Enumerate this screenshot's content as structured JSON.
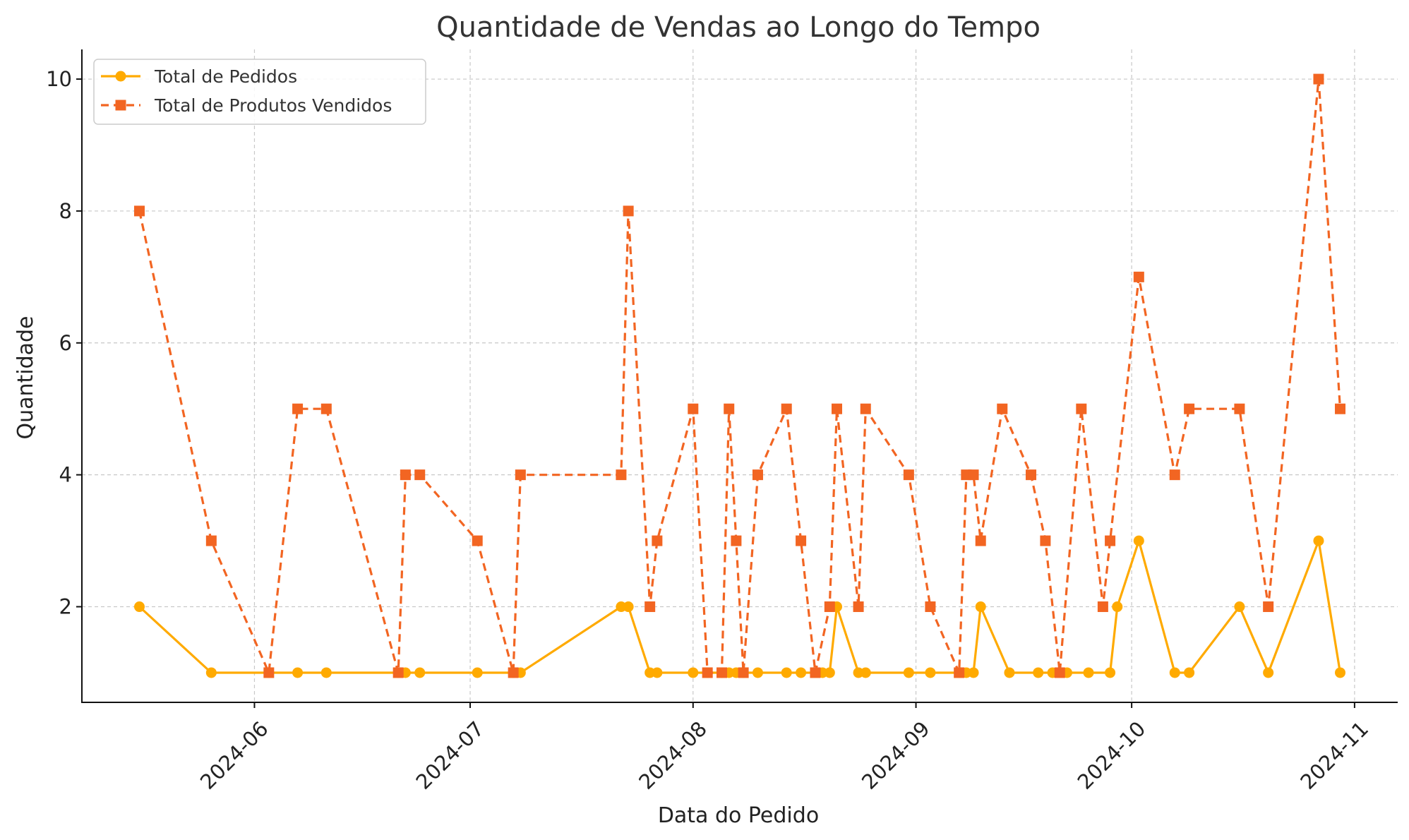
{
  "chart_data": {
    "type": "line",
    "title": "Quantidade de Vendas ao Longo do Tempo",
    "xlabel": "Data do Pedido",
    "ylabel": "Quantidade",
    "xlim": [
      "2024-05-08",
      "2024-11-07"
    ],
    "ylim": [
      0.55,
      10.45
    ],
    "x_ticks": [
      {
        "date": "2024-06-01",
        "label": "2024-06"
      },
      {
        "date": "2024-07-01",
        "label": "2024-07"
      },
      {
        "date": "2024-08-01",
        "label": "2024-08"
      },
      {
        "date": "2024-09-01",
        "label": "2024-09"
      },
      {
        "date": "2024-10-01",
        "label": "2024-10"
      },
      {
        "date": "2024-11-01",
        "label": "2024-11"
      }
    ],
    "y_ticks": [
      2,
      4,
      6,
      8,
      10
    ],
    "grid": true,
    "legend_position": "upper-left",
    "series": [
      {
        "name": "Total de Pedidos",
        "color": "#FFAA00",
        "line_style": "solid",
        "marker": "circle",
        "points": [
          [
            "2024-05-16",
            2
          ],
          [
            "2024-05-26",
            1
          ],
          [
            "2024-06-03",
            1
          ],
          [
            "2024-06-07",
            1
          ],
          [
            "2024-06-11",
            1
          ],
          [
            "2024-06-21",
            1
          ],
          [
            "2024-06-22",
            1
          ],
          [
            "2024-06-24",
            1
          ],
          [
            "2024-07-02",
            1
          ],
          [
            "2024-07-07",
            1
          ],
          [
            "2024-07-08",
            1
          ],
          [
            "2024-07-22",
            2
          ],
          [
            "2024-07-23",
            2
          ],
          [
            "2024-07-26",
            1
          ],
          [
            "2024-07-27",
            1
          ],
          [
            "2024-08-01",
            1
          ],
          [
            "2024-08-03",
            1
          ],
          [
            "2024-08-05",
            1
          ],
          [
            "2024-08-06",
            1
          ],
          [
            "2024-08-07",
            1
          ],
          [
            "2024-08-08",
            1
          ],
          [
            "2024-08-10",
            1
          ],
          [
            "2024-08-14",
            1
          ],
          [
            "2024-08-16",
            1
          ],
          [
            "2024-08-19",
            1
          ],
          [
            "2024-08-20",
            1
          ],
          [
            "2024-08-21",
            2
          ],
          [
            "2024-08-24",
            1
          ],
          [
            "2024-08-25",
            1
          ],
          [
            "2024-08-31",
            1
          ],
          [
            "2024-09-03",
            1
          ],
          [
            "2024-09-07",
            1
          ],
          [
            "2024-09-08",
            1
          ],
          [
            "2024-09-09",
            1
          ],
          [
            "2024-09-10",
            2
          ],
          [
            "2024-09-14",
            1
          ],
          [
            "2024-09-18",
            1
          ],
          [
            "2024-09-20",
            1
          ],
          [
            "2024-09-22",
            1
          ],
          [
            "2024-09-25",
            1
          ],
          [
            "2024-09-28",
            1
          ],
          [
            "2024-09-29",
            2
          ],
          [
            "2024-10-02",
            3
          ],
          [
            "2024-10-07",
            1
          ],
          [
            "2024-10-09",
            1
          ],
          [
            "2024-10-16",
            2
          ],
          [
            "2024-10-20",
            1
          ],
          [
            "2024-10-27",
            3
          ],
          [
            "2024-10-30",
            1
          ]
        ]
      },
      {
        "name": "Total de Produtos Vendidos",
        "color": "#F26522",
        "line_style": "dashed",
        "marker": "square",
        "points": [
          [
            "2024-05-16",
            8
          ],
          [
            "2024-05-26",
            3
          ],
          [
            "2024-06-03",
            1
          ],
          [
            "2024-06-07",
            5
          ],
          [
            "2024-06-11",
            5
          ],
          [
            "2024-06-21",
            1
          ],
          [
            "2024-06-22",
            4
          ],
          [
            "2024-06-24",
            4
          ],
          [
            "2024-07-02",
            3
          ],
          [
            "2024-07-07",
            1
          ],
          [
            "2024-07-08",
            4
          ],
          [
            "2024-07-22",
            4
          ],
          [
            "2024-07-23",
            8
          ],
          [
            "2024-07-26",
            2
          ],
          [
            "2024-07-27",
            3
          ],
          [
            "2024-08-01",
            5
          ],
          [
            "2024-08-03",
            1
          ],
          [
            "2024-08-05",
            1
          ],
          [
            "2024-08-06",
            5
          ],
          [
            "2024-08-07",
            3
          ],
          [
            "2024-08-08",
            1
          ],
          [
            "2024-08-10",
            4
          ],
          [
            "2024-08-14",
            5
          ],
          [
            "2024-08-16",
            3
          ],
          [
            "2024-08-18",
            1
          ],
          [
            "2024-08-20",
            2
          ],
          [
            "2024-08-21",
            5
          ],
          [
            "2024-08-24",
            2
          ],
          [
            "2024-08-25",
            5
          ],
          [
            "2024-08-31",
            4
          ],
          [
            "2024-09-03",
            2
          ],
          [
            "2024-09-07",
            1
          ],
          [
            "2024-09-08",
            4
          ],
          [
            "2024-09-09",
            4
          ],
          [
            "2024-09-10",
            3
          ],
          [
            "2024-09-13",
            5
          ],
          [
            "2024-09-17",
            4
          ],
          [
            "2024-09-19",
            3
          ],
          [
            "2024-09-21",
            1
          ],
          [
            "2024-09-24",
            5
          ],
          [
            "2024-09-27",
            2
          ],
          [
            "2024-09-28",
            3
          ],
          [
            "2024-10-02",
            7
          ],
          [
            "2024-10-07",
            4
          ],
          [
            "2024-10-09",
            5
          ],
          [
            "2024-10-16",
            5
          ],
          [
            "2024-10-20",
            2
          ],
          [
            "2024-10-27",
            10
          ],
          [
            "2024-10-30",
            5
          ]
        ]
      }
    ]
  }
}
